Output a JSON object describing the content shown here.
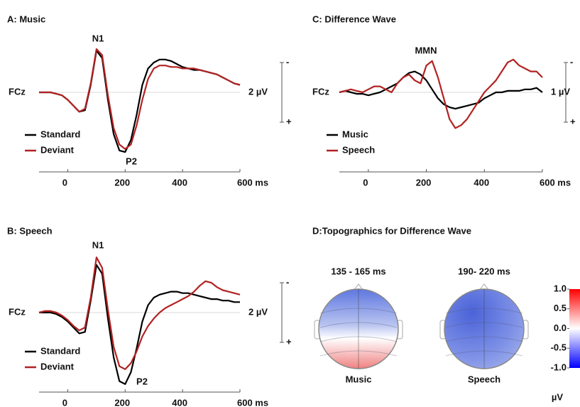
{
  "chart_data": [
    {
      "type": "line",
      "title": "A: Music",
      "channel": "FCz",
      "x": [
        -100,
        -80,
        -60,
        -40,
        -20,
        0,
        20,
        40,
        60,
        80,
        100,
        120,
        140,
        160,
        180,
        200,
        220,
        240,
        260,
        280,
        300,
        320,
        340,
        360,
        380,
        400,
        420,
        440,
        460,
        480,
        500,
        520,
        540,
        560,
        580,
        600
      ],
      "series": [
        {
          "name": "Standard",
          "color": "#000000",
          "values": [
            0,
            0,
            0,
            0.1,
            0.2,
            0.5,
            0.9,
            1.3,
            1.2,
            -0.5,
            -2.8,
            -2.3,
            0.5,
            2.8,
            3.9,
            4.0,
            3.2,
            1.5,
            -0.5,
            -1.6,
            -2.0,
            -2.2,
            -2.2,
            -2.1,
            -1.9,
            -1.7,
            -1.6,
            -1.5,
            -1.5,
            -1.4,
            -1.3,
            -1.2,
            -1.0,
            -0.8,
            -0.6,
            -0.5
          ]
        },
        {
          "name": "Deviant",
          "color": "#b22222",
          "values": [
            0,
            0,
            0,
            0.1,
            0.2,
            0.5,
            0.9,
            1.3,
            1.1,
            -0.6,
            -2.9,
            -2.5,
            0.2,
            2.4,
            3.5,
            3.8,
            3.5,
            2.2,
            0.5,
            -0.9,
            -1.6,
            -1.8,
            -1.8,
            -1.7,
            -1.7,
            -1.6,
            -1.6,
            -1.6,
            -1.5,
            -1.4,
            -1.3,
            -1.2,
            -1.0,
            -0.8,
            -0.6,
            -0.5
          ]
        }
      ],
      "annotations": [
        "N1",
        "P2"
      ],
      "xlim": [
        -100,
        600
      ],
      "xticks": [
        0,
        200,
        400,
        {
          "value": 600,
          "label": "600 ms"
        }
      ],
      "ylim": [
        5,
        -4
      ],
      "scale_bar": {
        "range": [
          -2,
          2
        ],
        "label": "2 µV",
        "top": "-",
        "bottom": "+"
      }
    },
    {
      "type": "line",
      "title": "B: Speech",
      "channel": "FCz",
      "x": [
        -100,
        -80,
        -60,
        -40,
        -20,
        0,
        20,
        40,
        60,
        80,
        100,
        120,
        140,
        160,
        180,
        200,
        220,
        240,
        260,
        280,
        300,
        320,
        340,
        360,
        380,
        400,
        420,
        440,
        460,
        480,
        500,
        520,
        540,
        560,
        580,
        600
      ],
      "series": [
        {
          "name": "Standard",
          "color": "#000000",
          "values": [
            0,
            0,
            0,
            0.1,
            0.3,
            0.6,
            1.0,
            1.4,
            1.3,
            -0.8,
            -3.2,
            -2.6,
            0.4,
            3.0,
            4.6,
            4.8,
            4.0,
            2.4,
            0.6,
            -0.5,
            -1.0,
            -1.2,
            -1.3,
            -1.4,
            -1.4,
            -1.3,
            -1.3,
            -1.2,
            -1.1,
            -1.0,
            -0.9,
            -0.9,
            -0.8,
            -0.8,
            -0.7,
            -0.7
          ]
        },
        {
          "name": "Deviant",
          "color": "#b22222",
          "values": [
            0,
            -0.1,
            -0.1,
            0,
            0.2,
            0.5,
            0.9,
            1.2,
            1.0,
            -1.0,
            -3.7,
            -3.0,
            -0.2,
            2.3,
            3.6,
            3.8,
            3.4,
            2.6,
            1.6,
            0.9,
            0.4,
            0.0,
            -0.3,
            -0.5,
            -0.7,
            -0.9,
            -1.1,
            -1.4,
            -1.8,
            -2.1,
            -2.0,
            -1.7,
            -1.5,
            -1.4,
            -1.3,
            -1.2
          ]
        }
      ],
      "annotations": [
        "N1",
        "P2"
      ],
      "xlim": [
        -100,
        600
      ],
      "xticks": [
        0,
        200,
        400,
        {
          "value": 600,
          "label": "600 ms"
        }
      ],
      "ylim": [
        5,
        -4
      ],
      "scale_bar": {
        "range": [
          -2,
          2
        ],
        "label": "2 µV",
        "top": "-",
        "bottom": "+"
      }
    },
    {
      "type": "line",
      "title": "C: Difference Wave",
      "channel": "FCz",
      "x": [
        -100,
        -80,
        -60,
        -40,
        -20,
        0,
        20,
        40,
        60,
        80,
        100,
        120,
        140,
        160,
        180,
        200,
        220,
        240,
        260,
        280,
        300,
        320,
        340,
        360,
        380,
        400,
        420,
        440,
        460,
        480,
        500,
        520,
        540,
        560,
        580,
        600
      ],
      "series": [
        {
          "name": "Music",
          "color": "#000000",
          "values": [
            0,
            -0.05,
            0,
            0.05,
            0.05,
            0.1,
            0.05,
            0,
            -0.1,
            -0.2,
            -0.3,
            -0.5,
            -0.65,
            -0.7,
            -0.6,
            -0.4,
            -0.1,
            0.2,
            0.4,
            0.5,
            0.55,
            0.5,
            0.45,
            0.4,
            0.35,
            0.2,
            0.1,
            0,
            0,
            -0.05,
            -0.05,
            -0.05,
            -0.1,
            -0.1,
            -0.15,
            0
          ]
        },
        {
          "name": "Speech",
          "color": "#b22222",
          "values": [
            0,
            -0.05,
            -0.1,
            -0.05,
            0,
            -0.1,
            -0.2,
            -0.2,
            -0.1,
            0,
            -0.3,
            -0.5,
            -0.6,
            -0.4,
            -0.3,
            -0.9,
            -1.05,
            -0.5,
            0.2,
            0.9,
            1.2,
            1.1,
            0.9,
            0.6,
            0.3,
            0,
            -0.2,
            -0.4,
            -0.7,
            -1.0,
            -1.1,
            -0.9,
            -0.8,
            -0.7,
            -0.7,
            -0.5
          ]
        }
      ],
      "annotations": [
        "MMN"
      ],
      "xlim": [
        -100,
        600
      ],
      "xticks": [
        0,
        200,
        400,
        {
          "value": 600,
          "label": "600 ms"
        }
      ],
      "ylim": [
        2.5,
        -2
      ],
      "scale_bar": {
        "range": [
          -1,
          1
        ],
        "label": "1 µV",
        "top": "-",
        "bottom": "+"
      }
    },
    {
      "type": "topomap",
      "title": "D:Topographics for Difference Wave",
      "maps": [
        {
          "time": "135 - 165 ms",
          "name": "Music"
        },
        {
          "time": "190- 220 ms",
          "name": "Speech"
        }
      ],
      "clim": [
        -1,
        1
      ],
      "cticks": [
        {
          "value": 1,
          "label": "1.0"
        },
        0.5,
        {
          "value": 0,
          "label": "0.0"
        },
        -0.5,
        {
          "value": -1,
          "label": "-1.0"
        }
      ],
      "clabel": "µV"
    }
  ]
}
